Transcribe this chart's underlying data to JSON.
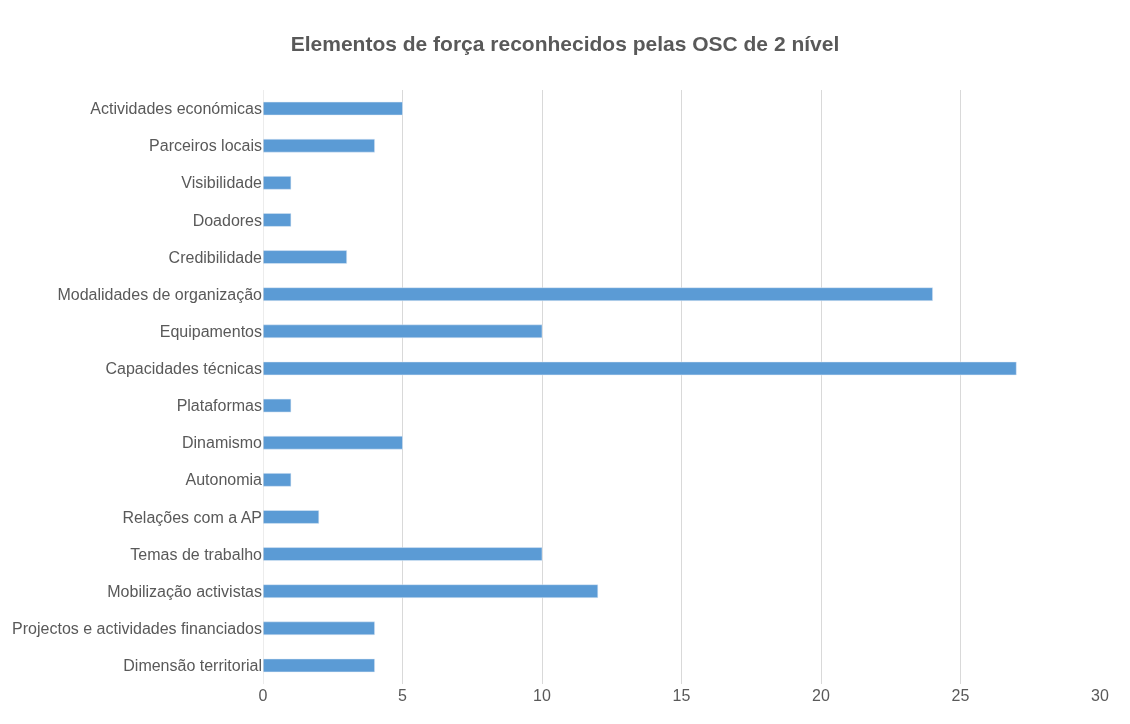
{
  "chart_data": {
    "type": "bar",
    "orientation": "horizontal",
    "title": "Elementos de força reconhecidos pelas OSC de 2 nível",
    "categories": [
      "Actividades económicas",
      "Parceiros locais",
      "Visibilidade",
      "Doadores",
      "Credibilidade",
      "Modalidades de organização",
      "Equipamentos",
      "Capacidades técnicas",
      "Plataformas",
      "Dinamismo",
      "Autonomia",
      "Relações com a AP",
      "Temas de trabalho",
      "Mobilização activistas",
      "Projectos e actividades financiados",
      "Dimensão territorial"
    ],
    "values": [
      5,
      4,
      1,
      1,
      3,
      24,
      10,
      27,
      1,
      5,
      1,
      2,
      10,
      12,
      4,
      4
    ],
    "color": "#5b9bd5",
    "xlim": [
      0,
      30
    ],
    "xticks": [
      0,
      5,
      10,
      15,
      20,
      25,
      30
    ],
    "grid": "x"
  }
}
